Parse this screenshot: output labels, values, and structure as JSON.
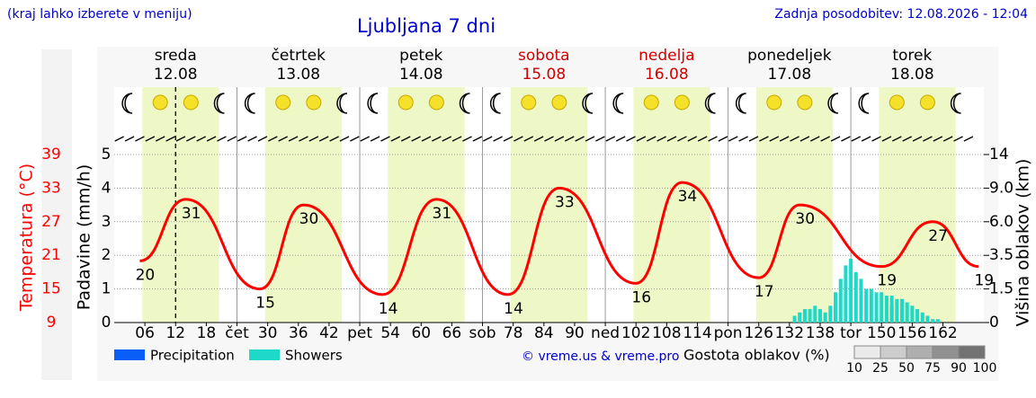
{
  "chart_data": {
    "type": "line",
    "title": "Ljubljana 7 dni",
    "header_left": "(kraj lahko izberete v meniju)",
    "header_right": "Zadnja posodobitev: 12.08.2026 - 12:04",
    "days": [
      {
        "name": "sreda",
        "date": "12.08",
        "color": "#000000"
      },
      {
        "name": "četrtek",
        "date": "13.08",
        "color": "#000000"
      },
      {
        "name": "petek",
        "date": "14.08",
        "color": "#000000"
      },
      {
        "name": "sobota",
        "date": "15.08",
        "color": "#d00000"
      },
      {
        "name": "nedelja",
        "date": "16.08",
        "color": "#d00000"
      },
      {
        "name": "ponedeljek",
        "date": "17.08",
        "color": "#000000"
      },
      {
        "name": "torek",
        "date": "18.08",
        "color": "#000000"
      }
    ],
    "xlim": [
      0,
      170
    ],
    "xticks": [
      {
        "value": 6,
        "label": "06"
      },
      12,
      18,
      {
        "value": 24,
        "label": "čet"
      },
      30,
      36,
      42,
      {
        "value": 48,
        "label": "pet"
      },
      54,
      60,
      66,
      {
        "value": 72,
        "label": "sob"
      },
      78,
      84,
      90,
      {
        "value": 96,
        "label": "ned"
      },
      102,
      108,
      114,
      {
        "value": 120,
        "label": "pon"
      },
      126,
      132,
      138,
      {
        "value": 144,
        "label": "tor"
      },
      150,
      156,
      162
    ],
    "ylabel": "Padavine (mm/h)",
    "ylim": [
      0,
      5
    ],
    "yticks": [
      0,
      1,
      2,
      3,
      4,
      5
    ],
    "temperature_axis": {
      "label": "Temperatura (°C)",
      "color": "#ff0000",
      "lim": [
        9,
        39
      ],
      "ticks": [
        9,
        15,
        21,
        27,
        33,
        39
      ]
    },
    "cloud_axis": {
      "label": "Višina oblakov (km)",
      "ticks": [
        0,
        {
          "value": 1.5,
          "label": "1.5"
        },
        {
          "value": 3.5,
          "label": "3.5"
        },
        {
          "value": 6,
          "label": "6.0"
        },
        {
          "value": 9,
          "label": "9.0"
        },
        14
      ]
    },
    "series": [
      {
        "color": "#ff0000",
        "axis": "temperature",
        "x": [
          5,
          14,
          28.5,
          37,
          52.5,
          63,
          77,
          87,
          102,
          111,
          126,
          134,
          150,
          160,
          169
        ],
        "values": [
          20,
          31,
          15,
          30,
          14,
          31,
          14,
          33,
          16,
          34,
          17,
          30,
          19,
          27,
          19
        ]
      },
      {
        "name": "Precipitation",
        "color": "#0a5ef8",
        "x": [
          152
        ],
        "values": [
          0.5
        ]
      },
      {
        "name": "Showers",
        "color": "#1ed8c8",
        "x": [
          133,
          134,
          135,
          136,
          137,
          138,
          139,
          140,
          141,
          142,
          143,
          144,
          145,
          146,
          147,
          148,
          149,
          150,
          151,
          152,
          153,
          154,
          155,
          156,
          157,
          158,
          159,
          160,
          161
        ],
        "values": [
          0.2,
          0.3,
          0.4,
          0.4,
          0.5,
          0.4,
          0.3,
          0.5,
          0.9,
          1.3,
          1.7,
          1.9,
          1.5,
          1.3,
          1.0,
          1.0,
          0.9,
          0.9,
          0.8,
          0.8,
          0.7,
          0.7,
          0.6,
          0.5,
          0.4,
          0.3,
          0.2,
          0.1,
          0.1
        ]
      }
    ],
    "copyright": "© vreme.us & vreme.pro",
    "cloud_legend": {
      "title": "Gostota oblakov (%)",
      "ticks": [
        10,
        25,
        50,
        75,
        90,
        100
      ]
    }
  }
}
